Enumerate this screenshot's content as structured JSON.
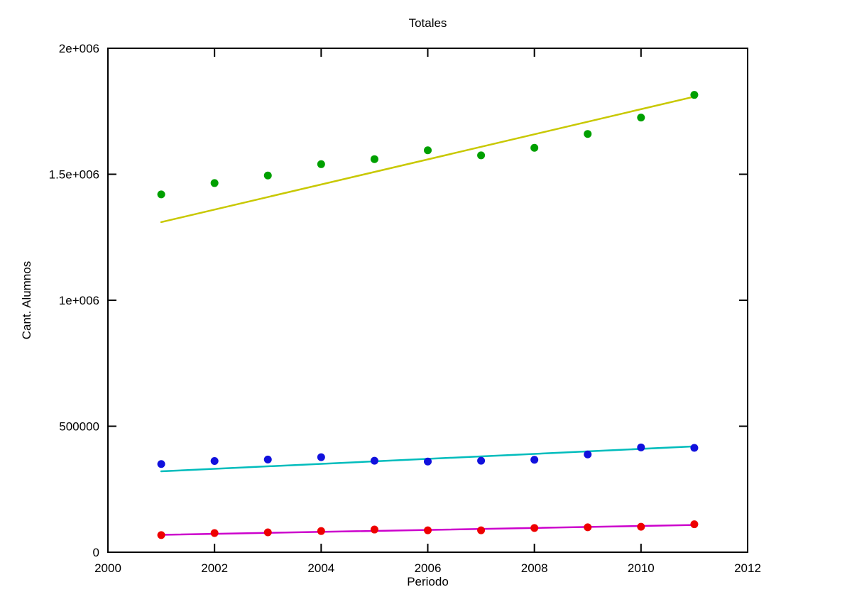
{
  "chart_data": {
    "type": "scatter",
    "title": "Totales",
    "xlabel": "Periodo",
    "ylabel": "Cant. Alumnos",
    "xlim": [
      2000,
      2012
    ],
    "ylim": [
      0,
      2000000
    ],
    "grid": false,
    "legend": "none",
    "xticks": [
      {
        "v": 2000,
        "label": "2000"
      },
      {
        "v": 2002,
        "label": "2002"
      },
      {
        "v": 2004,
        "label": "2004"
      },
      {
        "v": 2006,
        "label": "2006"
      },
      {
        "v": 2008,
        "label": "2008"
      },
      {
        "v": 2010,
        "label": "2010"
      },
      {
        "v": 2012,
        "label": "2012"
      }
    ],
    "yticks": [
      {
        "v": 0,
        "label": "0"
      },
      {
        "v": 500000,
        "label": "500000"
      },
      {
        "v": 1000000,
        "label": "1e+006"
      },
      {
        "v": 1500000,
        "label": "1.5e+006"
      },
      {
        "v": 2000000,
        "label": "2e+006"
      }
    ],
    "x": [
      2001,
      2002,
      2003,
      2004,
      2005,
      2006,
      2007,
      2008,
      2009,
      2010,
      2011
    ],
    "point_series": [
      {
        "name": "green-points-total",
        "color": "#00a000",
        "values": [
          1420000,
          1465000,
          1495000,
          1540000,
          1560000,
          1595000,
          1575000,
          1605000,
          1660000,
          1725000,
          1815000
        ]
      },
      {
        "name": "blue-points",
        "color": "#1111dd",
        "values": [
          350000,
          362000,
          368000,
          377000,
          363000,
          360000,
          363000,
          367000,
          388000,
          416000,
          414000
        ]
      },
      {
        "name": "red-points",
        "color": "#ee0000",
        "values": [
          68000,
          76000,
          79000,
          84000,
          90000,
          87000,
          87000,
          96000,
          99000,
          101000,
          111000
        ]
      }
    ],
    "fit_lines": [
      {
        "name": "yellow-fit-line",
        "color": "#c8c800",
        "x": [
          2001,
          2011
        ],
        "y": [
          1310000,
          1808000
        ]
      },
      {
        "name": "cyan-fit-line",
        "color": "#00bcbc",
        "x": [
          2001,
          2011
        ],
        "y": [
          321000,
          420000
        ]
      },
      {
        "name": "magenta-fit-line",
        "color": "#cc00cc",
        "x": [
          2001,
          2011
        ],
        "y": [
          69000,
          108000
        ]
      }
    ],
    "style": {
      "axis_color": "#000000",
      "background": "#ffffff",
      "point_radius": 5.5,
      "line_width": 2.5,
      "border_width": 2,
      "tick_length": 12
    }
  }
}
